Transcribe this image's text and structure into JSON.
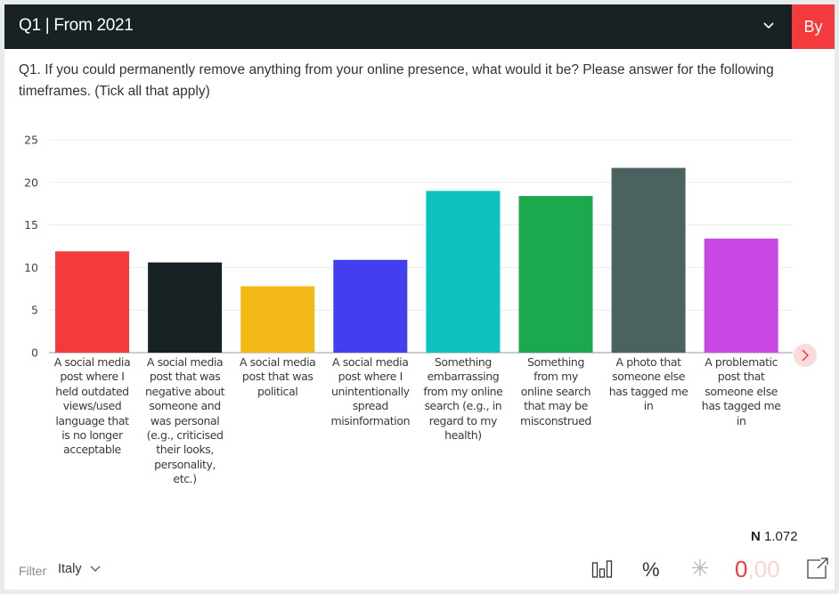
{
  "header": {
    "title": "Q1 | From 2021",
    "dropdown_icon": "chevron-down-icon",
    "by_button_label": "By"
  },
  "question": {
    "text": "Q1. If you could permanently remove anything from your online presence, what would it be? Please answer for the following timeframes. (Tick all that apply)"
  },
  "colors": {
    "header_bg": "#182224",
    "accent": "#f33b3e"
  },
  "chart_data": {
    "type": "bar",
    "title": "",
    "xlabel": "",
    "ylabel": "",
    "ylim": [
      0,
      25
    ],
    "yticks": [
      0,
      5,
      10,
      15,
      20,
      25
    ],
    "grid": true,
    "categories": [
      "A social media post where I held outdated views/used language that is no longer acceptable",
      "A social media post that was negative about someone and was personal (e.g., criticised their looks, personality, etc.)",
      "A social media post that was political",
      "A social media post where I unintentionally spread misinformation",
      "Something embarrassing from my online search (e.g., in regard to my health)",
      "Something from my online search that may be misconstrued",
      "A photo that someone else has tagged me in",
      "A problematic post that someone else has tagged me in"
    ],
    "category_lines": [
      [
        "A social media",
        "post where I",
        "held outdated",
        "views/used",
        "language that",
        "is no longer",
        "acceptable"
      ],
      [
        "A social media",
        "post that was",
        "negative about",
        "someone and",
        "was personal",
        "(e.g., criticised",
        "their looks,",
        "personality,",
        "etc.)"
      ],
      [
        "A social media",
        "post that was",
        "political"
      ],
      [
        "A social media",
        "post where I",
        "unintentionally",
        "spread",
        "misinformation"
      ],
      [
        "Something",
        "embarrassing",
        "from my online",
        "search (e.g., in",
        "regard to my",
        "health)"
      ],
      [
        "Something",
        "from my",
        "online search",
        "that may be",
        "misconstrued"
      ],
      [
        "A photo that",
        "someone else",
        "has tagged me",
        "in"
      ],
      [
        "A problematic",
        "post that",
        "someone else",
        "has tagged me",
        "in"
      ]
    ],
    "values": [
      11.9,
      10.6,
      7.8,
      10.9,
      19.0,
      18.4,
      21.7,
      13.4
    ],
    "bar_colors": [
      "#f33b3e",
      "#182224",
      "#f2b917",
      "#433ef0",
      "#0bc2bf",
      "#1ca94e",
      "#4c6260",
      "#c947e3"
    ]
  },
  "navigation": {
    "next_icon": "chevron-right-icon"
  },
  "sample_size": {
    "label": "N",
    "value": "1.072"
  },
  "footer": {
    "filter_label": "Filter",
    "filter_value": "Italy",
    "chart_type_icon": "bar-chart-icon",
    "percent_label": "%",
    "significance_icon": "asterisk-icon",
    "significance_label": "✳",
    "decimals_zero": "0",
    "decimals_rest": ",00",
    "export_icon": "external-link-icon"
  }
}
